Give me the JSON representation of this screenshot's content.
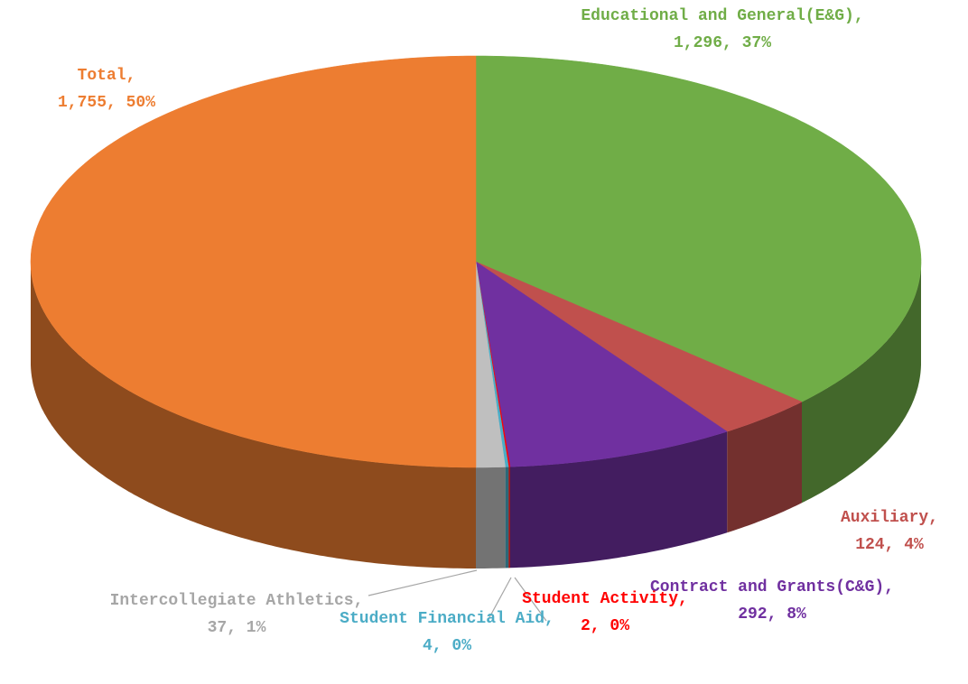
{
  "chart_data": {
    "type": "pie3d",
    "categories": [
      "Educational and General(E&G)",
      "Auxiliary",
      "Contract and Grants(C&G)",
      "Student Activity",
      "Student Financial Aid",
      "Intercollegiate Athletics",
      "Total"
    ],
    "values": [
      1296,
      124,
      292,
      2,
      4,
      37,
      1755
    ],
    "value_labels": [
      "1,296",
      "124",
      "292",
      "2",
      "4",
      "37",
      "1,755"
    ],
    "percents": [
      37,
      4,
      8,
      0,
      0,
      1,
      50
    ],
    "percent_labels": [
      "37%",
      "4%",
      "8%",
      "0%",
      "0%",
      "1%",
      "50%"
    ],
    "colors": [
      "#70ad47",
      "#c0504d",
      "#7030a0",
      "#ff0000",
      "#4bacc6",
      "#bfbfbf",
      "#ed7d31"
    ],
    "label_colors": [
      "#70ad47",
      "#c0504d",
      "#7030a0",
      "#ff0000",
      "#4bacc6",
      "#a6a6a6",
      "#ed7d31"
    ]
  }
}
